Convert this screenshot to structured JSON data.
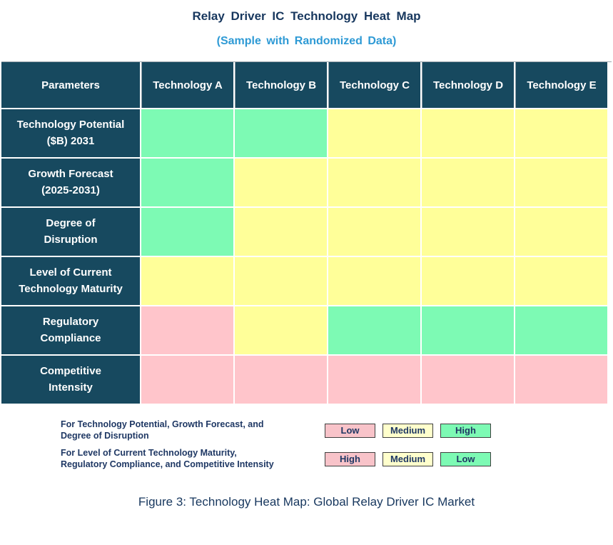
{
  "title": "Relay Driver IC Technology Heat Map",
  "subtitle": "(Sample with Randomized Data)",
  "caption": "Figure 3: Technology Heat Map: Global Relay Driver IC Market",
  "colors": {
    "header_bg": "#17495F",
    "header_text": "#FFFFFF",
    "title_text": "#17375E",
    "subtitle_text": "#2E9AD5",
    "legend_text": "#1F3864",
    "green": "#7DFAB4",
    "yellow": "#FFFF99",
    "pink": "#FFC5CB",
    "legend_green": "#7DFAB4",
    "legend_yellow": "#FFFFCC",
    "legend_pink": "#F8C3C9"
  },
  "table": {
    "columns": [
      "Parameters",
      "Technology A",
      "Technology B",
      "Technology C",
      "Technology D",
      "Technology E"
    ],
    "rows": [
      {
        "label": "Technology Potential\n($B) 2031",
        "cells": [
          "green",
          "green",
          "yellow",
          "yellow",
          "yellow"
        ]
      },
      {
        "label": "Growth Forecast\n(2025-2031)",
        "cells": [
          "green",
          "yellow",
          "yellow",
          "yellow",
          "yellow"
        ]
      },
      {
        "label": "Degree of\nDisruption",
        "cells": [
          "green",
          "yellow",
          "yellow",
          "yellow",
          "yellow"
        ]
      },
      {
        "label": "Level of Current\nTechnology Maturity",
        "cells": [
          "yellow",
          "yellow",
          "yellow",
          "yellow",
          "yellow"
        ]
      },
      {
        "label": "Regulatory\nCompliance",
        "cells": [
          "pink",
          "yellow",
          "green",
          "green",
          "green"
        ]
      },
      {
        "label": "Competitive\nIntensity",
        "cells": [
          "pink",
          "pink",
          "pink",
          "pink",
          "pink"
        ]
      }
    ]
  },
  "legend": {
    "rows": [
      {
        "text": "For Technology Potential, Growth Forecast, and\nDegree of Disruption",
        "swatches": [
          {
            "label": "Low",
            "color": "legend_pink"
          },
          {
            "label": "Medium",
            "color": "legend_yellow"
          },
          {
            "label": "High",
            "color": "legend_green"
          }
        ]
      },
      {
        "text": "For Level of Current Technology Maturity,\nRegulatory Compliance, and Competitive Intensity",
        "swatches": [
          {
            "label": "High",
            "color": "legend_pink"
          },
          {
            "label": "Medium",
            "color": "legend_yellow"
          },
          {
            "label": "Low",
            "color": "legend_green"
          }
        ]
      }
    ]
  },
  "chart_data": {
    "type": "heatmap",
    "title": "Relay Driver IC Technology Heat Map",
    "subtitle": "(Sample with Randomized Data)",
    "x_categories": [
      "Technology A",
      "Technology B",
      "Technology C",
      "Technology D",
      "Technology E"
    ],
    "y_categories": [
      "Technology Potential ($B) 2031",
      "Growth Forecast (2025-2031)",
      "Degree of Disruption",
      "Level of Current Technology Maturity",
      "Regulatory Compliance",
      "Competitive Intensity"
    ],
    "cell_colors": [
      [
        "green",
        "green",
        "yellow",
        "yellow",
        "yellow"
      ],
      [
        "green",
        "yellow",
        "yellow",
        "yellow",
        "yellow"
      ],
      [
        "green",
        "yellow",
        "yellow",
        "yellow",
        "yellow"
      ],
      [
        "yellow",
        "yellow",
        "yellow",
        "yellow",
        "yellow"
      ],
      [
        "pink",
        "yellow",
        "green",
        "green",
        "green"
      ],
      [
        "pink",
        "pink",
        "pink",
        "pink",
        "pink"
      ]
    ],
    "cell_values": [
      [
        "High",
        "High",
        "Medium",
        "Medium",
        "Medium"
      ],
      [
        "High",
        "Medium",
        "Medium",
        "Medium",
        "Medium"
      ],
      [
        "High",
        "Medium",
        "Medium",
        "Medium",
        "Medium"
      ],
      [
        "Medium",
        "Medium",
        "Medium",
        "Medium",
        "Medium"
      ],
      [
        "High",
        "Medium",
        "Low",
        "Low",
        "Low"
      ],
      [
        "High",
        "High",
        "High",
        "High",
        "High"
      ]
    ],
    "legend": [
      {
        "applies_to": "Technology Potential, Growth Forecast, Degree of Disruption",
        "pink": "Low",
        "yellow": "Medium",
        "green": "High"
      },
      {
        "applies_to": "Level of Current Technology Maturity, Regulatory Compliance, Competitive Intensity",
        "pink": "High",
        "yellow": "Medium",
        "green": "Low"
      }
    ],
    "layout": {
      "legend_position": "bottom-left",
      "grid": false
    }
  }
}
